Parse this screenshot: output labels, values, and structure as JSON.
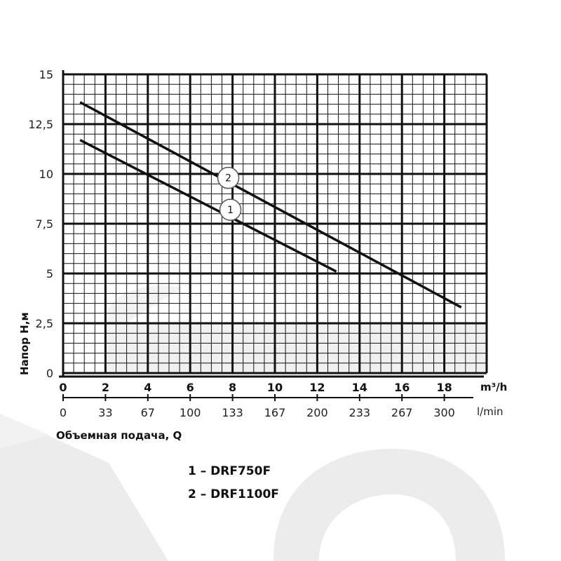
{
  "chart_data": {
    "type": "line",
    "ylabel": "Напор  Н,м",
    "xlabel": "Объемная подача, Q",
    "x_unit_primary": "m³/h",
    "x_unit_secondary": "l/min",
    "xlim": [
      0,
      20
    ],
    "ylim": [
      0,
      15
    ],
    "y_ticks": [
      "0",
      "2,5",
      "5",
      "7,5",
      "10",
      "12,5",
      "15"
    ],
    "x_ticks_primary": [
      "0",
      "2",
      "4",
      "6",
      "8",
      "10",
      "12",
      "14",
      "16",
      "18"
    ],
    "x_ticks_secondary": [
      "0",
      "33",
      "67",
      "100",
      "133",
      "167",
      "200",
      "233",
      "267",
      "300"
    ],
    "grid": true,
    "series": [
      {
        "name": "1",
        "x": [
          0.8,
          12.9
        ],
        "y": [
          11.7,
          5.1
        ]
      },
      {
        "name": "2",
        "x": [
          0.8,
          18.8
        ],
        "y": [
          13.6,
          3.3
        ]
      }
    ],
    "markers": [
      {
        "label": "1",
        "x": 7.9,
        "y": 8.2
      },
      {
        "label": "2",
        "x": 7.8,
        "y": 9.8
      }
    ],
    "legend": [
      {
        "text": "1 – DRF750F"
      },
      {
        "text": "2 – DRF1100F"
      }
    ],
    "colors": {
      "lines": "#111111",
      "grid": "#111111",
      "watermark": "#e8e8e8"
    }
  }
}
